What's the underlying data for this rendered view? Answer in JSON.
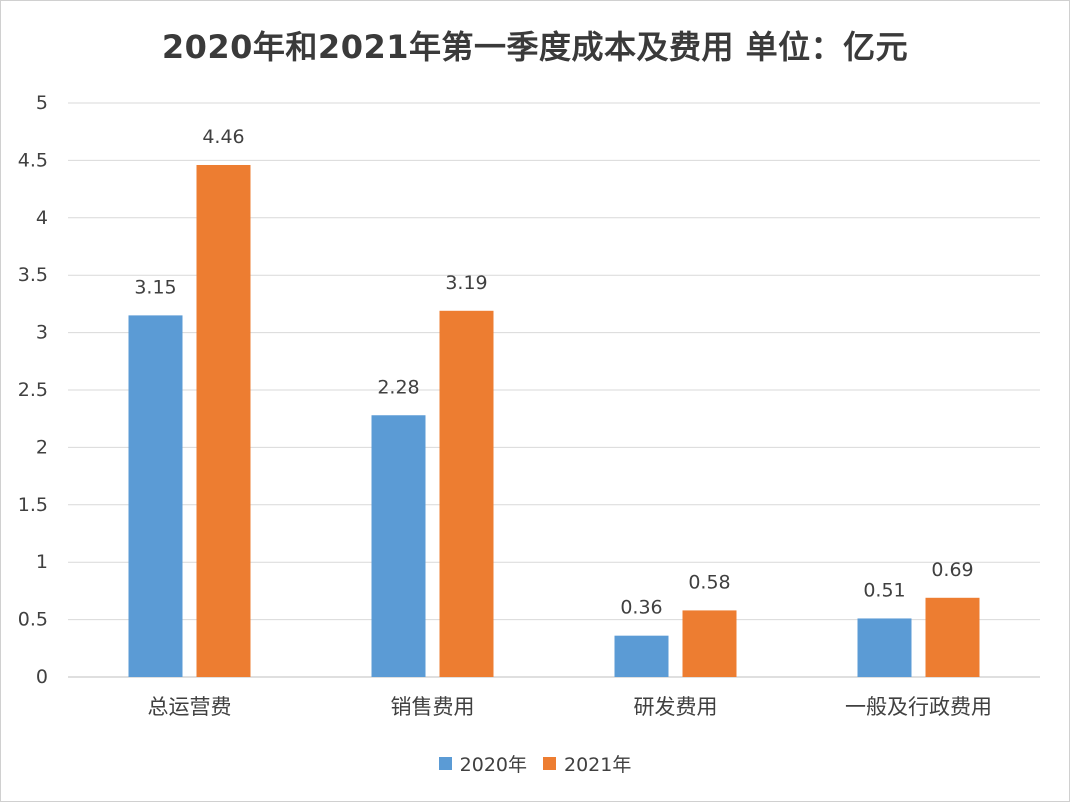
{
  "chart_data": {
    "type": "bar",
    "title": "2020年和2021年第一季度成本及费用  单位：亿元",
    "categories": [
      "总运营费",
      "销售费用",
      "研发费用",
      "一般及行政费用"
    ],
    "series": [
      {
        "name": "2020年",
        "values": [
          3.15,
          2.28,
          0.36,
          0.51
        ],
        "color": "#5B9BD5"
      },
      {
        "name": "2021年",
        "values": [
          4.46,
          3.19,
          0.58,
          0.69
        ],
        "color": "#ED7D31"
      }
    ],
    "yticks": [
      "0",
      "0.5",
      "1",
      "1.5",
      "2",
      "2.5",
      "3",
      "3.5",
      "4",
      "4.5",
      "5"
    ],
    "ylim": [
      0,
      5
    ],
    "grid": true,
    "legend_position": "bottom"
  }
}
